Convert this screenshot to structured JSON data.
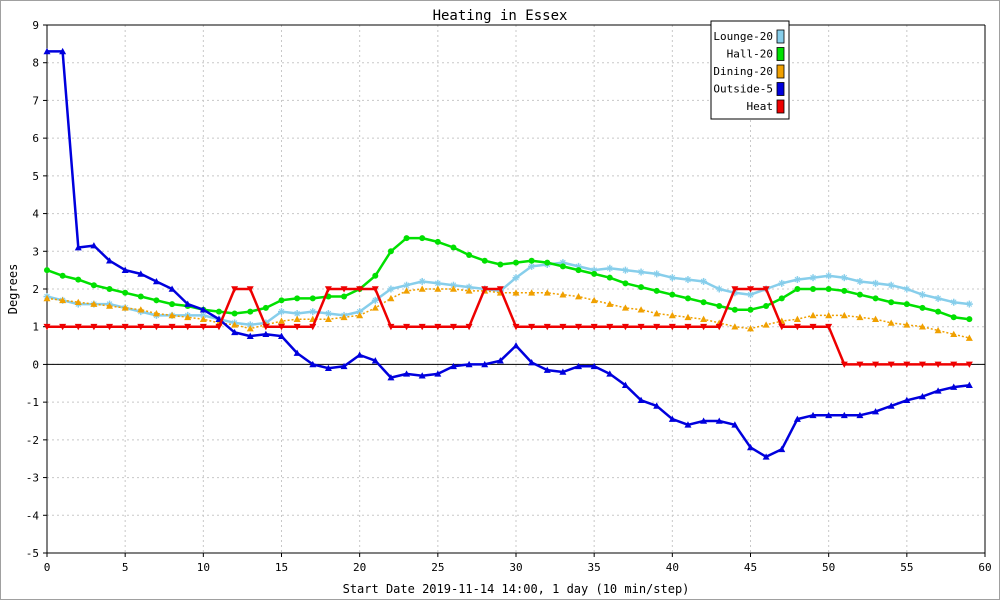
{
  "chart_data": {
    "type": "line",
    "title": "Heating in Essex",
    "xlabel": "Start Date 2019-11-14 14:00, 1 day (10 min/step)",
    "ylabel": "Degrees",
    "xlim": [
      0,
      60
    ],
    "ylim": [
      -5,
      9
    ],
    "xticks": [
      0,
      5,
      10,
      15,
      20,
      25,
      30,
      35,
      40,
      45,
      50,
      55,
      60
    ],
    "yticks": [
      -5,
      -4,
      -3,
      -2,
      -1,
      0,
      1,
      2,
      3,
      4,
      5,
      6,
      7,
      8,
      9
    ],
    "grid": true,
    "legend": "top-right",
    "x": [
      0,
      1,
      2,
      3,
      4,
      5,
      6,
      7,
      8,
      9,
      10,
      11,
      12,
      13,
      14,
      15,
      16,
      17,
      18,
      19,
      20,
      21,
      22,
      23,
      24,
      25,
      26,
      27,
      28,
      29,
      30,
      31,
      32,
      33,
      34,
      35,
      36,
      37,
      38,
      39,
      40,
      41,
      42,
      43,
      44,
      45,
      46,
      47,
      48,
      49,
      50,
      51,
      52,
      53,
      54,
      55,
      56,
      57,
      58,
      59
    ],
    "series": [
      {
        "name": "Lounge-20",
        "color": "#87ceeb",
        "marker": "star",
        "values": [
          1.8,
          1.7,
          1.6,
          1.6,
          1.6,
          1.5,
          1.4,
          1.3,
          1.3,
          1.3,
          1.3,
          1.2,
          1.1,
          1.05,
          1.1,
          1.4,
          1.35,
          1.4,
          1.35,
          1.3,
          1.4,
          1.7,
          2.0,
          2.1,
          2.2,
          2.15,
          2.1,
          2.05,
          2.0,
          1.95,
          2.3,
          2.6,
          2.65,
          2.7,
          2.6,
          2.5,
          2.55,
          2.5,
          2.45,
          2.4,
          2.3,
          2.25,
          2.2,
          2.0,
          1.9,
          1.85,
          2.0,
          2.15,
          2.25,
          2.3,
          2.35,
          2.3,
          2.2,
          2.15,
          2.1,
          2.0,
          1.85,
          1.75,
          1.65,
          1.6
        ]
      },
      {
        "name": "Hall-20",
        "color": "#00e000",
        "marker": "circle",
        "values": [
          2.5,
          2.35,
          2.25,
          2.1,
          2.0,
          1.9,
          1.8,
          1.7,
          1.6,
          1.55,
          1.45,
          1.4,
          1.35,
          1.4,
          1.5,
          1.7,
          1.75,
          1.75,
          1.8,
          1.8,
          2.0,
          2.35,
          3.0,
          3.35,
          3.35,
          3.25,
          3.1,
          2.9,
          2.75,
          2.65,
          2.7,
          2.75,
          2.7,
          2.6,
          2.5,
          2.4,
          2.3,
          2.15,
          2.05,
          1.95,
          1.85,
          1.75,
          1.65,
          1.55,
          1.45,
          1.45,
          1.55,
          1.75,
          2.0,
          2.0,
          2.0,
          1.95,
          1.85,
          1.75,
          1.65,
          1.6,
          1.5,
          1.4,
          1.25,
          1.2
        ]
      },
      {
        "name": "Dining-20",
        "color": "#f0a000",
        "marker": "triangle",
        "values": [
          1.75,
          1.7,
          1.65,
          1.6,
          1.55,
          1.5,
          1.45,
          1.35,
          1.3,
          1.25,
          1.2,
          1.1,
          1.05,
          0.95,
          1.05,
          1.15,
          1.2,
          1.2,
          1.2,
          1.25,
          1.3,
          1.5,
          1.75,
          1.95,
          2.0,
          2.0,
          2.0,
          1.95,
          1.95,
          1.9,
          1.9,
          1.9,
          1.9,
          1.85,
          1.8,
          1.7,
          1.6,
          1.5,
          1.45,
          1.35,
          1.3,
          1.25,
          1.2,
          1.1,
          1.0,
          0.95,
          1.05,
          1.15,
          1.2,
          1.3,
          1.3,
          1.3,
          1.25,
          1.2,
          1.1,
          1.05,
          1.0,
          0.9,
          0.8,
          0.7
        ]
      },
      {
        "name": "Outside-5",
        "color": "#0000dd",
        "marker": "triangle",
        "values": [
          8.3,
          8.3,
          3.1,
          3.15,
          2.75,
          2.5,
          2.4,
          2.2,
          2.0,
          1.6,
          1.45,
          1.2,
          0.85,
          0.75,
          0.8,
          0.75,
          0.3,
          0.0,
          -0.1,
          -0.05,
          0.25,
          0.1,
          -0.35,
          -0.25,
          -0.3,
          -0.25,
          -0.05,
          0.0,
          0.0,
          0.1,
          0.5,
          0.05,
          -0.15,
          -0.2,
          -0.05,
          -0.05,
          -0.25,
          -0.55,
          -0.95,
          -1.1,
          -1.45,
          -1.6,
          -1.5,
          -1.5,
          -1.6,
          -2.2,
          -2.45,
          -2.25,
          -1.45,
          -1.35,
          -1.35,
          -1.35,
          -1.35,
          -1.25,
          -1.1,
          -0.95,
          -0.85,
          -0.7,
          -0.6,
          -0.55
        ]
      },
      {
        "name": "Heat",
        "color": "#ee0000",
        "marker": "triangle-down",
        "values": [
          1,
          1,
          1,
          1,
          1,
          1,
          1,
          1,
          1,
          1,
          1,
          1,
          2,
          2,
          1,
          1,
          1,
          1,
          2,
          2,
          2,
          2,
          1,
          1,
          1,
          1,
          1,
          1,
          2,
          2,
          1,
          1,
          1,
          1,
          1,
          1,
          1,
          1,
          1,
          1,
          1,
          1,
          1,
          1,
          2,
          2,
          2,
          1,
          1,
          1,
          1,
          0,
          0,
          0,
          0,
          0,
          0,
          0,
          0,
          0
        ]
      }
    ]
  }
}
